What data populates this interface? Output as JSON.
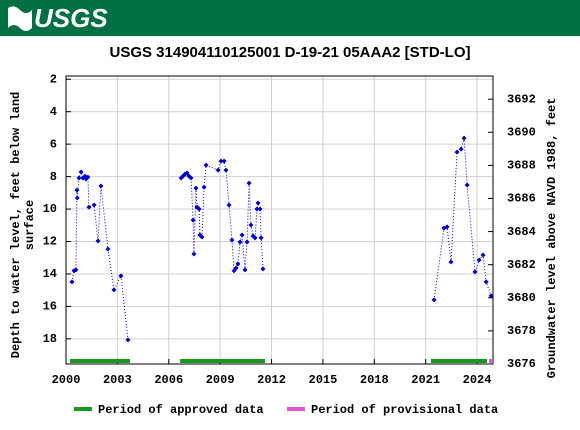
{
  "header": {
    "logo_text": "USGS"
  },
  "chart_data": {
    "type": "line",
    "title": "USGS 314904110125001 D-19-21 05AAA2 [STD-LO]",
    "ylabel": [
      "Depth to water level, feet below land",
      "surface"
    ],
    "y2label": "Groundwater level above NAVD 1988, feet",
    "xlim": [
      2000,
      2024.93
    ],
    "xticks": [
      2000,
      2003,
      2006,
      2009,
      2012,
      2015,
      2018,
      2021,
      2024
    ],
    "ylim": [
      1.8,
      19.55
    ],
    "y_inverted": true,
    "yticks": [
      2,
      4,
      6,
      8,
      10,
      12,
      14,
      16,
      18
    ],
    "y2lim": [
      3676,
      3693.4
    ],
    "y2ticks": [
      3676,
      3678,
      3680,
      3682,
      3684,
      3686,
      3688,
      3690,
      3692
    ],
    "grid": true,
    "series": [
      {
        "color": "#0000cc",
        "x": [
          2000.35,
          2000.47,
          2000.58,
          2000.64,
          2000.66,
          2000.76,
          2000.88,
          2000.99,
          2001.11,
          2001.17,
          2001.28,
          2001.34,
          2001.64,
          2001.87,
          2002.04,
          2002.45,
          2002.8,
          2003.21,
          2003.62,
          2006.72,
          2006.83,
          2006.95,
          2007.07,
          2007.18,
          2007.3,
          2007.42,
          2007.47,
          2007.59,
          2007.65,
          2007.77,
          2007.82,
          2007.94,
          2008.06,
          2008.18,
          2008.88,
          2009.05,
          2009.23,
          2009.34,
          2009.52,
          2009.69,
          2009.81,
          2009.93,
          2010.04,
          2010.16,
          2010.28,
          2010.45,
          2010.57,
          2010.69,
          2010.8,
          2010.92,
          2011.04,
          2011.15,
          2011.21,
          2011.33,
          2011.39,
          2011.5,
          2021.49,
          2022.07,
          2022.25,
          2022.48,
          2022.83,
          2023.07,
          2023.24,
          2023.42,
          2023.88,
          2024.12,
          2024.35,
          2024.53,
          2024.82
        ],
        "values": [
          14.49,
          13.8,
          13.75,
          8.83,
          9.32,
          8.09,
          7.72,
          8.09,
          7.97,
          8.15,
          8.03,
          9.88,
          9.75,
          11.97,
          8.58,
          12.46,
          14.98,
          14.12,
          18.06,
          8.09,
          7.97,
          7.85,
          7.78,
          7.97,
          8.09,
          10.68,
          12.77,
          8.71,
          9.88,
          10.0,
          11.6,
          11.72,
          8.65,
          7.29,
          7.6,
          7.05,
          7.05,
          7.6,
          9.75,
          11.91,
          13.8,
          13.63,
          13.38,
          12.03,
          11.6,
          13.75,
          12.03,
          8.4,
          10.98,
          11.66,
          11.78,
          10.0,
          9.63,
          10.0,
          11.78,
          13.69,
          15.6,
          11.17,
          11.1,
          13.26,
          6.49,
          6.31,
          5.63,
          8.52,
          13.87,
          13.14,
          12.83,
          14.49,
          15.35
        ]
      }
    ],
    "legend": [
      {
        "name": "Period of approved data",
        "color": "#1a9a1a"
      },
      {
        "name": "Period of provisional data",
        "color": "#e055d8"
      }
    ],
    "periods": [
      {
        "start": 2000.23,
        "end": 2003.74,
        "legend": 0
      },
      {
        "start": 2006.66,
        "end": 2011.62,
        "legend": 0
      },
      {
        "start": 2021.31,
        "end": 2024.58,
        "legend": 0
      },
      {
        "start": 2024.7,
        "end": 2024.93,
        "legend": 1
      }
    ]
  }
}
